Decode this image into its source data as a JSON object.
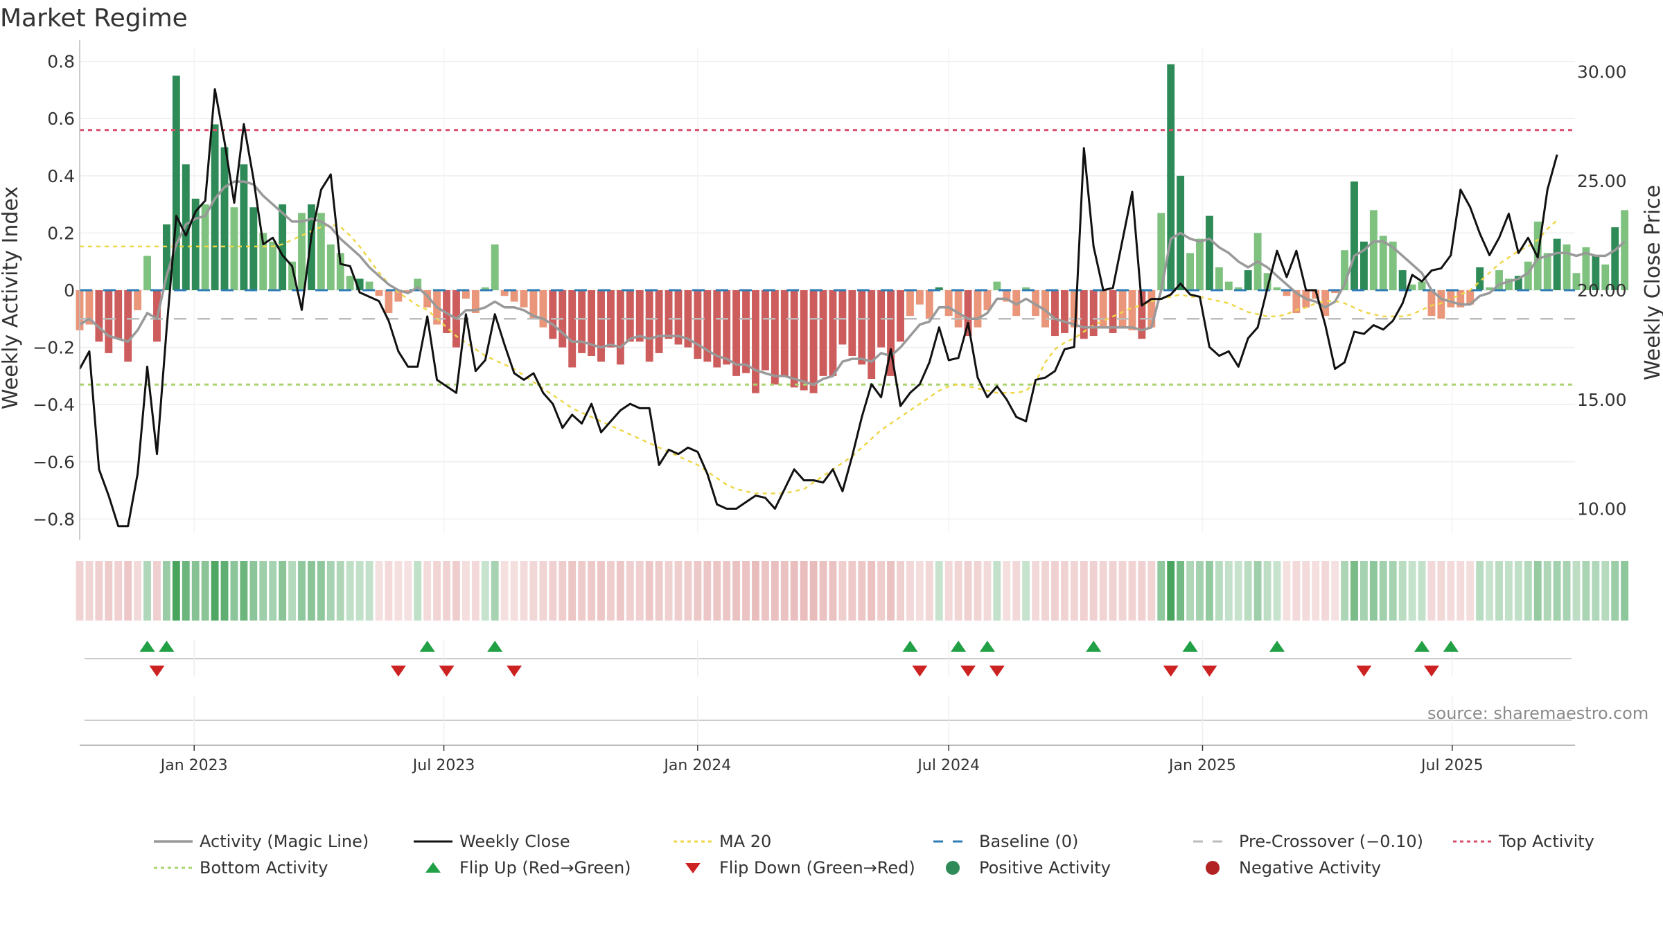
{
  "title": "Market Regime",
  "source": "source: sharemaestro.com",
  "colors": {
    "activity_line": "#999999",
    "close_line": "#111111",
    "ma20": "#eed74a",
    "baseline": "#2f7db5",
    "precross": "#bbbbbb",
    "top": "#d94f6a",
    "bottom": "#a9d46f",
    "pos_strong": "#2e8b57",
    "pos_light": "#7fc27f",
    "neg_strong": "#cd5c5c",
    "neg_light": "#e9967a",
    "flip_up": "#22a045",
    "flip_down": "#cc2222",
    "grid": "#eeeeee",
    "axis": "#bbbbbb",
    "text": "#333333"
  },
  "chart_data": {
    "type": "bar",
    "ylabel": "Weekly Activity Index",
    "y2label": "Weekly Close Price",
    "ylim": [
      -0.85,
      0.85
    ],
    "y2lim": [
      8.875,
      31.125
    ],
    "yticks": [
      -0.8,
      -0.6,
      -0.4,
      -0.2,
      0,
      0.2,
      0.4,
      0.6,
      0.8
    ],
    "yticklabels": [
      "−0.8",
      "−0.6",
      "−0.4",
      "−0.2",
      "0",
      "0.2",
      "0.4",
      "0.6",
      "0.8"
    ],
    "y2ticks": [
      10,
      15,
      20,
      25,
      30
    ],
    "y2ticklabels": [
      "10.00",
      "15.00",
      "20.00",
      "25.00",
      "30.00"
    ],
    "xlim": [
      "2022-10-10",
      "2025-09-28"
    ],
    "xticks": [
      "2023-01-01",
      "2023-07-01",
      "2024-01-01",
      "2024-07-01",
      "2025-01-01",
      "2025-07-01"
    ],
    "xticklabels": [
      "Jan 2023",
      "Jul 2023",
      "Jan 2024",
      "Jul 2024",
      "Jan 2025",
      "Jul 2025"
    ],
    "start_week": "2022-10-10",
    "top_activity": 0.56,
    "bottom_activity": -0.33,
    "pre_crossover": -0.1,
    "activity": [
      -0.14,
      -0.12,
      -0.18,
      -0.22,
      -0.17,
      -0.25,
      -0.07,
      0.12,
      -0.18,
      0.23,
      0.75,
      0.44,
      0.32,
      0.3,
      0.58,
      0.5,
      0.29,
      0.44,
      0.29,
      0.2,
      0.17,
      0.3,
      0.1,
      0.27,
      0.3,
      0.27,
      0.16,
      0.13,
      0.05,
      0.04,
      0.03,
      -0.02,
      -0.08,
      -0.04,
      -0.01,
      0.04,
      -0.06,
      -0.12,
      -0.15,
      -0.2,
      -0.03,
      -0.08,
      0.01,
      0.16,
      -0.02,
      -0.04,
      -0.06,
      -0.1,
      -0.13,
      -0.17,
      -0.2,
      -0.27,
      -0.22,
      -0.23,
      -0.25,
      -0.2,
      -0.26,
      -0.18,
      -0.18,
      -0.25,
      -0.22,
      -0.17,
      -0.19,
      -0.2,
      -0.24,
      -0.25,
      -0.27,
      -0.26,
      -0.3,
      -0.29,
      -0.36,
      -0.28,
      -0.33,
      -0.3,
      -0.34,
      -0.35,
      -0.36,
      -0.3,
      -0.3,
      -0.19,
      -0.23,
      -0.26,
      -0.31,
      -0.2,
      -0.3,
      -0.18,
      -0.09,
      -0.05,
      -0.1,
      0.01,
      -0.09,
      -0.13,
      -0.16,
      -0.13,
      -0.07,
      0.03,
      -0.04,
      -0.09,
      0.01,
      -0.09,
      -0.13,
      -0.16,
      -0.15,
      -0.13,
      -0.17,
      -0.16,
      -0.13,
      -0.15,
      -0.13,
      -0.14,
      -0.17,
      -0.13,
      0.27,
      0.79,
      0.4,
      0.13,
      0.18,
      0.26,
      0.08,
      0.03,
      0.01,
      0.07,
      0.2,
      0.06,
      0.01,
      -0.02,
      -0.08,
      -0.06,
      -0.03,
      -0.09,
      -0.01,
      0.14,
      0.38,
      0.17,
      0.28,
      0.19,
      0.17,
      0.07,
      0.02,
      0.03,
      -0.09,
      -0.1,
      -0.06,
      -0.06,
      -0.05,
      0.08,
      0.01,
      0.07,
      0.04,
      0.05,
      0.1,
      0.24,
      0.13,
      0.18,
      0.16,
      0.06,
      0.15,
      0.12,
      0.09,
      0.22,
      0.28
    ],
    "magic_line": [
      -0.12,
      -0.1,
      -0.13,
      -0.16,
      -0.17,
      -0.18,
      -0.14,
      -0.08,
      -0.1,
      0.05,
      0.16,
      0.23,
      0.25,
      0.26,
      0.32,
      0.36,
      0.38,
      0.38,
      0.37,
      0.33,
      0.3,
      0.27,
      0.24,
      0.24,
      0.25,
      0.24,
      0.22,
      0.18,
      0.15,
      0.12,
      0.08,
      0.05,
      0.02,
      0.0,
      -0.01,
      0.01,
      -0.02,
      -0.06,
      -0.08,
      -0.1,
      -0.07,
      -0.07,
      -0.06,
      -0.04,
      -0.06,
      -0.06,
      -0.07,
      -0.09,
      -0.1,
      -0.12,
      -0.15,
      -0.18,
      -0.18,
      -0.19,
      -0.2,
      -0.19,
      -0.2,
      -0.17,
      -0.16,
      -0.17,
      -0.16,
      -0.16,
      -0.16,
      -0.17,
      -0.19,
      -0.21,
      -0.23,
      -0.24,
      -0.26,
      -0.26,
      -0.28,
      -0.29,
      -0.3,
      -0.3,
      -0.31,
      -0.32,
      -0.33,
      -0.31,
      -0.3,
      -0.25,
      -0.24,
      -0.24,
      -0.25,
      -0.22,
      -0.23,
      -0.2,
      -0.16,
      -0.12,
      -0.11,
      -0.06,
      -0.06,
      -0.08,
      -0.1,
      -0.1,
      -0.08,
      -0.03,
      -0.03,
      -0.05,
      -0.03,
      -0.05,
      -0.07,
      -0.1,
      -0.11,
      -0.12,
      -0.13,
      -0.13,
      -0.13,
      -0.13,
      -0.13,
      -0.13,
      -0.14,
      -0.13,
      0.0,
      0.18,
      0.2,
      0.18,
      0.17,
      0.18,
      0.15,
      0.13,
      0.1,
      0.08,
      0.1,
      0.08,
      0.05,
      0.02,
      -0.01,
      -0.03,
      -0.04,
      -0.06,
      -0.04,
      0.02,
      0.12,
      0.14,
      0.17,
      0.17,
      0.15,
      0.12,
      0.09,
      0.06,
      0.0,
      -0.03,
      -0.04,
      -0.05,
      -0.05,
      -0.02,
      -0.01,
      0.02,
      0.03,
      0.04,
      0.06,
      0.11,
      0.12,
      0.13,
      0.13,
      0.12,
      0.13,
      0.12,
      0.12,
      0.14,
      0.17
    ],
    "weekly_close": [
      16.4,
      17.2,
      11.8,
      10.6,
      9.2,
      9.2,
      11.6,
      16.5,
      12.5,
      18.2,
      23.4,
      22.5,
      23.6,
      24.1,
      29.2,
      26.8,
      24.0,
      27.6,
      25.1,
      22.1,
      22.4,
      21.6,
      21.1,
      19.1,
      22.5,
      24.6,
      25.3,
      21.2,
      21.1,
      19.9,
      19.7,
      19.5,
      18.6,
      17.2,
      16.5,
      16.5,
      18.8,
      15.9,
      15.6,
      15.3,
      18.9,
      16.3,
      16.8,
      18.9,
      17.5,
      16.2,
      15.9,
      16.2,
      15.3,
      14.8,
      13.7,
      14.3,
      13.9,
      14.8,
      13.5,
      14.0,
      14.5,
      14.8,
      14.6,
      14.6,
      12.0,
      12.7,
      12.5,
      12.8,
      12.6,
      11.6,
      10.2,
      10.0,
      10.0,
      10.3,
      10.6,
      10.5,
      10.0,
      10.9,
      11.8,
      11.3,
      11.3,
      11.2,
      11.8,
      10.8,
      12.4,
      14.2,
      15.7,
      15.1,
      17.3,
      14.7,
      15.3,
      15.7,
      16.7,
      18.3,
      16.8,
      16.9,
      18.5,
      16.0,
      15.1,
      15.6,
      15.0,
      14.2,
      14.0,
      15.9,
      16.0,
      16.3,
      17.3,
      17.4,
      26.5,
      22.0,
      20.0,
      20.1,
      22.3,
      24.5,
      19.3,
      19.6,
      19.6,
      19.8,
      20.3,
      19.8,
      19.7,
      17.4,
      17.0,
      17.2,
      16.5,
      17.8,
      18.3,
      20.1,
      21.8,
      20.6,
      21.8,
      20.0,
      20.0,
      18.4,
      16.4,
      16.7,
      18.1,
      18.0,
      18.4,
      18.2,
      18.6,
      19.4,
      20.7,
      20.4,
      20.9,
      21.0,
      21.6,
      24.6,
      23.8,
      22.6,
      21.6,
      22.4,
      23.5,
      21.7,
      22.4,
      21.5,
      24.6,
      26.2
    ],
    "ma20": [
      22.0,
      22.0,
      22.0,
      22.0,
      22.0,
      22.0,
      22.0,
      22.0,
      22.0,
      22.0,
      22.0,
      22.0,
      22.0,
      22.0,
      22.0,
      22.0,
      22.0,
      22.0,
      22.0,
      22.0,
      22.0,
      22.1,
      22.3,
      22.5,
      22.7,
      22.9,
      23.0,
      22.9,
      22.5,
      22.0,
      21.4,
      20.8,
      20.3,
      19.9,
      19.6,
      19.3,
      19.1,
      18.7,
      18.3,
      17.9,
      17.6,
      17.3,
      17.0,
      16.8,
      16.6,
      16.4,
      16.1,
      15.8,
      15.5,
      15.2,
      14.9,
      14.6,
      14.4,
      14.2,
      14.0,
      13.8,
      13.6,
      13.4,
      13.2,
      13.0,
      12.8,
      12.6,
      12.4,
      12.2,
      12.0,
      11.7,
      11.4,
      11.1,
      10.9,
      10.8,
      10.7,
      10.7,
      10.7,
      10.7,
      10.8,
      10.9,
      11.2,
      11.5,
      11.8,
      12.1,
      12.4,
      12.8,
      13.2,
      13.6,
      13.9,
      14.2,
      14.5,
      14.8,
      15.1,
      15.4,
      15.6,
      15.7,
      15.6,
      15.5,
      15.4,
      15.3,
      15.3,
      15.3,
      15.4,
      15.8,
      16.7,
      17.3,
      17.6,
      17.8,
      18.1,
      18.4,
      18.6,
      18.8,
      19.0,
      19.2,
      19.3,
      19.5,
      19.6,
      19.7,
      19.8,
      19.7,
      19.7,
      19.6,
      19.5,
      19.4,
      19.2,
      19.0,
      18.9,
      18.8,
      18.8,
      18.9,
      19.1,
      19.2,
      19.4,
      19.5,
      19.5,
      19.4,
      19.2,
      19.0,
      18.9,
      18.8,
      18.8,
      18.8,
      18.9,
      19.1,
      19.3,
      19.4,
      19.6,
      19.8,
      20.0,
      20.4,
      20.8,
      21.2,
      21.5,
      21.8,
      22.0,
      22.3,
      22.8,
      23.2
    ],
    "flip_up_weeks": [
      7,
      9,
      36,
      43,
      86,
      91,
      94,
      105,
      115,
      124,
      139,
      142
    ],
    "flip_down_weeks": [
      8,
      33,
      38,
      45,
      87,
      92,
      95,
      113,
      117,
      133,
      140
    ],
    "series": [
      {
        "name": "Activity (Magic Line)"
      },
      {
        "name": "Weekly Close"
      },
      {
        "name": "MA 20"
      },
      {
        "name": "Baseline (0)"
      },
      {
        "name": "Pre-Crossover (−0.10)"
      },
      {
        "name": "Top Activity"
      },
      {
        "name": "Bottom Activity"
      },
      {
        "name": "Flip Up (Red→Green)"
      },
      {
        "name": "Flip Down (Green→Red)"
      },
      {
        "name": "Positive Activity"
      },
      {
        "name": "Negative Activity"
      }
    ],
    "legend_position": "bottom",
    "grid": true
  }
}
